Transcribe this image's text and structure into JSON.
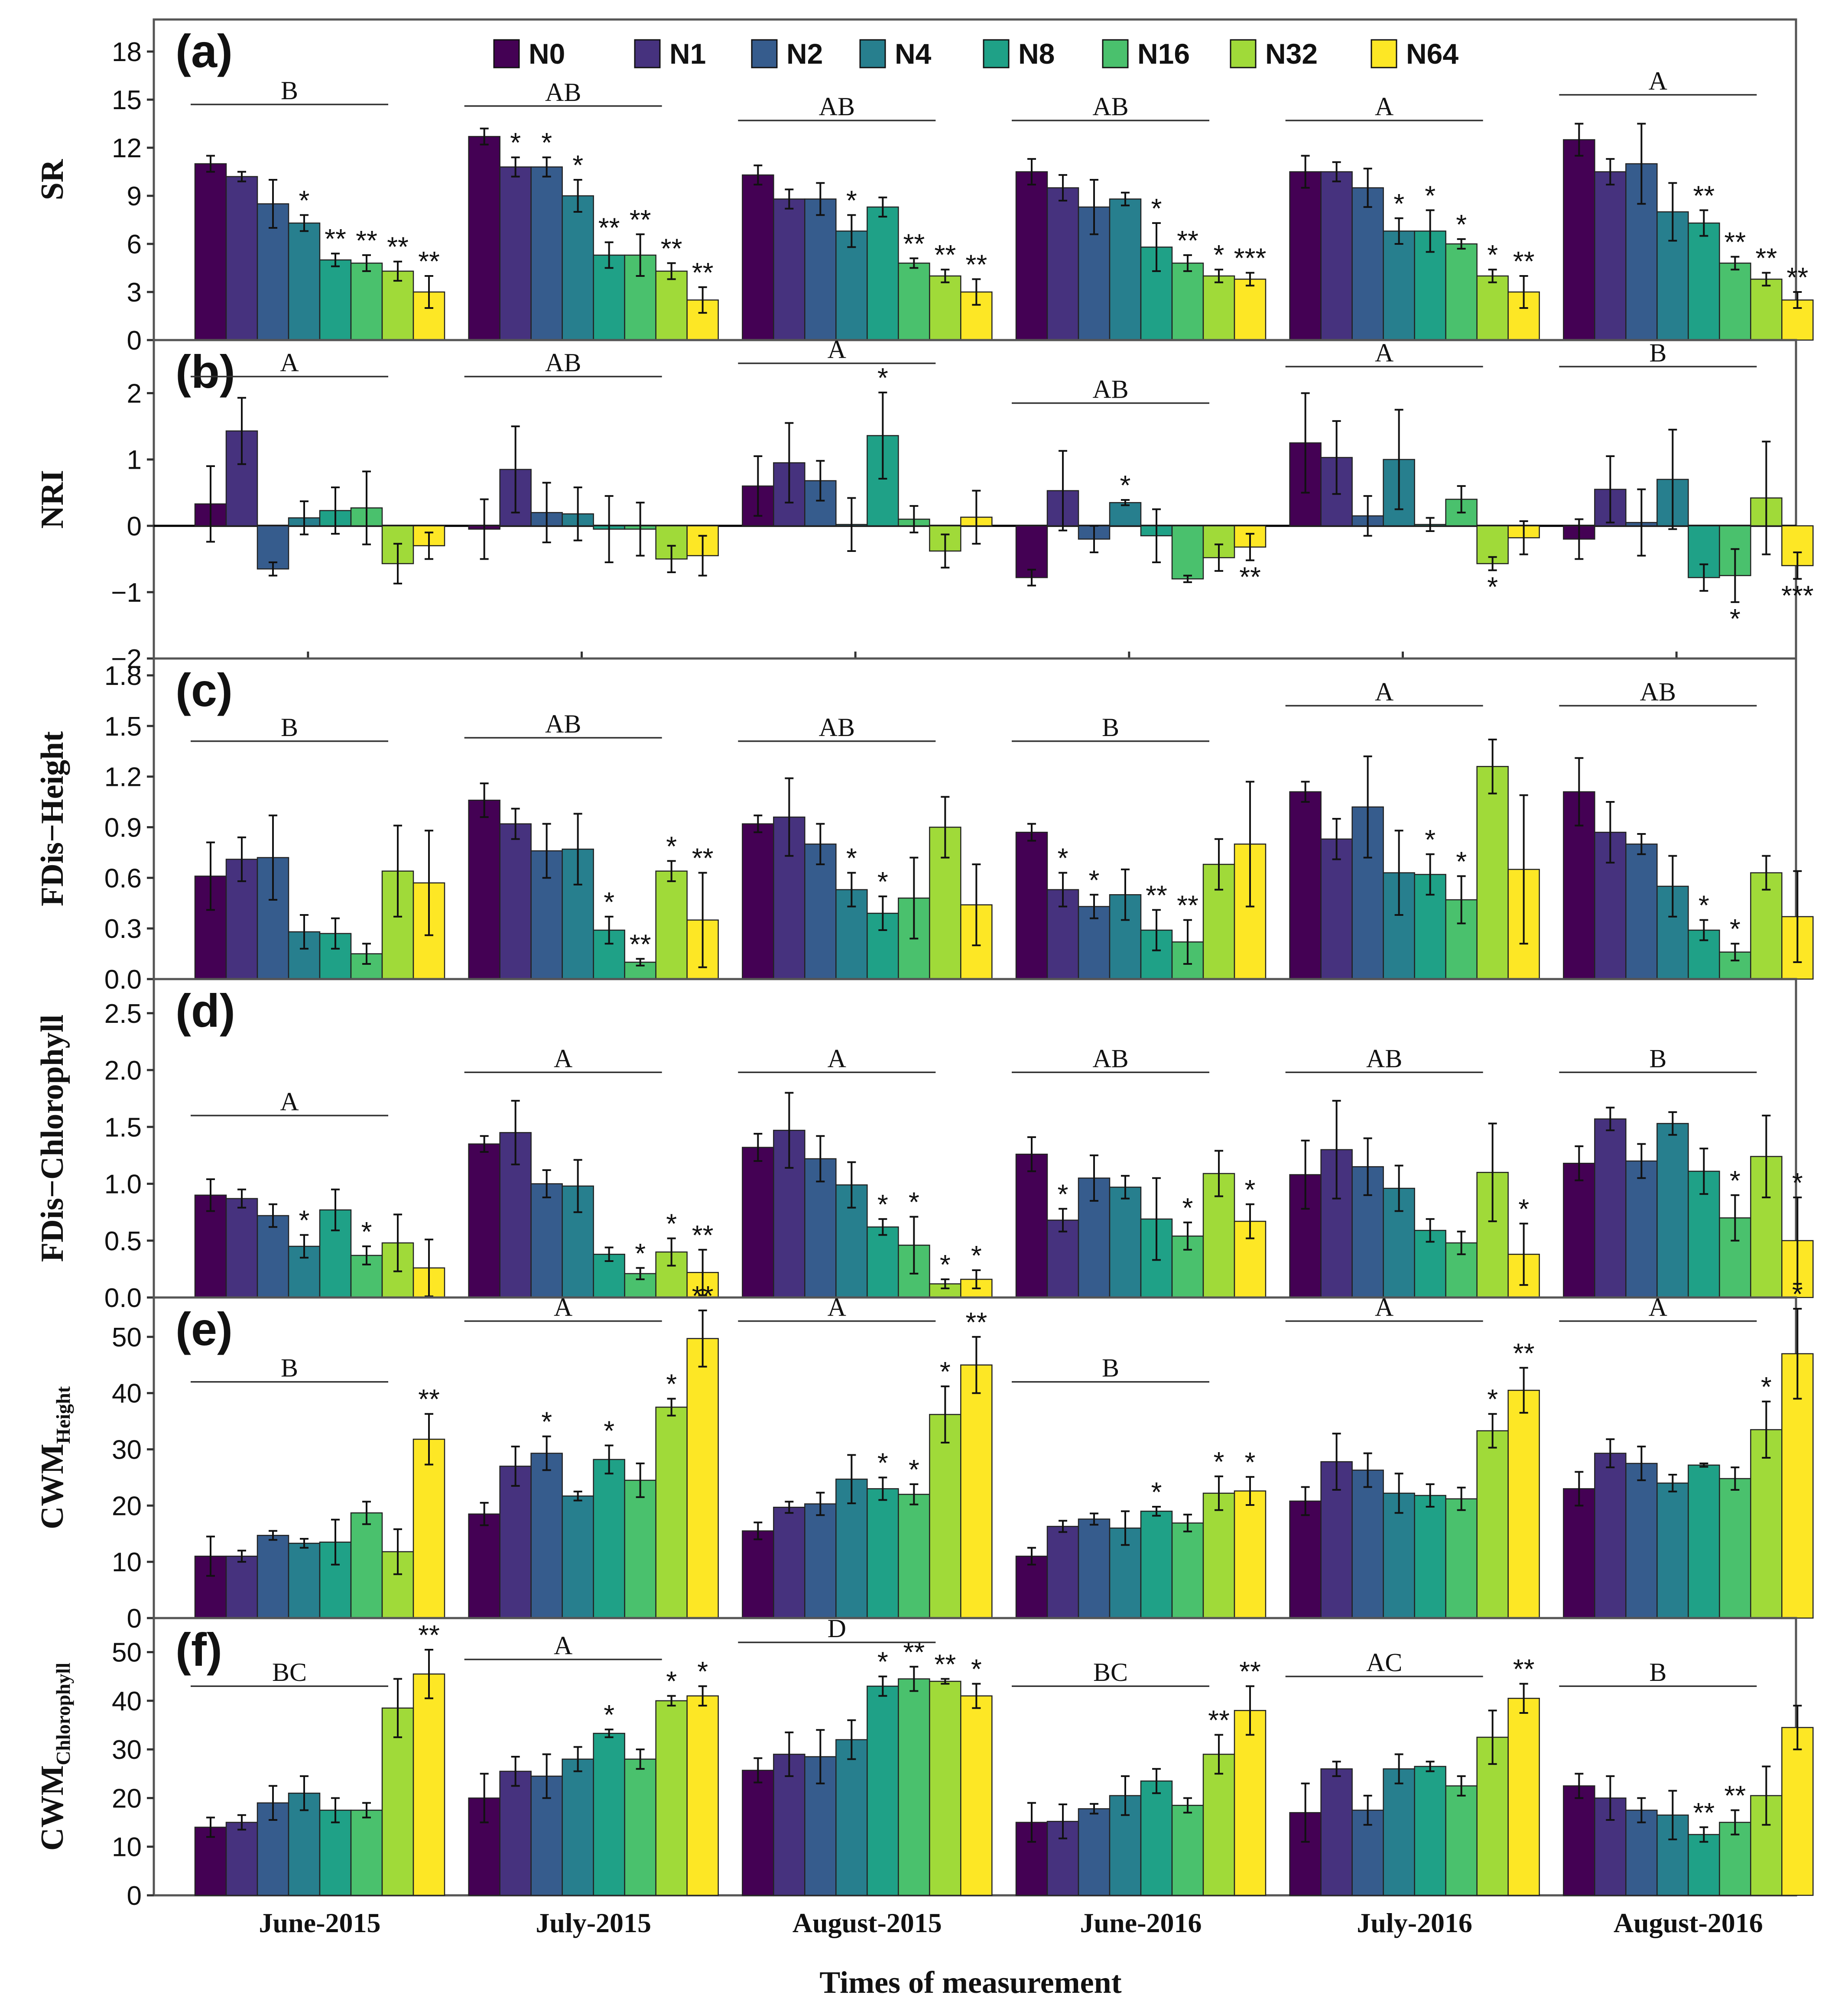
{
  "xlabel": "Times of measurement",
  "legend_entries": [
    "N0",
    "N1",
    "N2",
    "N4",
    "N8",
    "N16",
    "N32",
    "N64"
  ],
  "colors": [
    "#440154",
    "#46327e",
    "#365c8d",
    "#277f8e",
    "#1fa187",
    "#4ac16d",
    "#a0da39",
    "#fde725"
  ],
  "categories": [
    "June-2015",
    "July-2015",
    "August-2015",
    "June-2016",
    "July-2016",
    "August-2016"
  ],
  "chart_data": [
    {
      "type": "bar",
      "panel_label": "(a)",
      "ylabel_main": "SR",
      "ylabel_sub": "",
      "ylim": [
        0,
        20
      ],
      "yticks": [
        "0",
        "3",
        "6",
        "9",
        "12",
        "15",
        "18"
      ],
      "yticks_values": [
        0,
        3,
        6,
        9,
        12,
        15,
        18
      ],
      "series_values": [
        [
          11.0,
          10.2,
          8.5,
          7.3,
          5.0,
          4.8,
          4.3,
          3.0
        ],
        [
          12.7,
          10.8,
          10.8,
          9.0,
          5.3,
          5.3,
          4.3,
          2.5
        ],
        [
          10.3,
          8.8,
          8.8,
          6.8,
          8.3,
          4.8,
          4.0,
          3.0
        ],
        [
          10.5,
          9.5,
          8.3,
          8.8,
          5.8,
          4.8,
          4.0,
          3.8
        ],
        [
          10.5,
          10.5,
          9.5,
          6.8,
          6.8,
          6.0,
          4.0,
          3.0
        ],
        [
          12.5,
          10.5,
          11.0,
          8.0,
          7.3,
          4.8,
          3.8,
          2.5
        ]
      ],
      "errors": [
        [
          0.5,
          0.3,
          1.5,
          0.5,
          0.4,
          0.5,
          0.6,
          1.0
        ],
        [
          0.5,
          0.6,
          0.6,
          1.0,
          0.8,
          1.3,
          0.5,
          0.8
        ],
        [
          0.6,
          0.6,
          1.0,
          1.0,
          0.6,
          0.3,
          0.4,
          0.8
        ],
        [
          0.8,
          0.8,
          1.7,
          0.4,
          1.5,
          0.5,
          0.4,
          0.4
        ],
        [
          1.0,
          0.6,
          1.2,
          0.8,
          1.3,
          0.3,
          0.4,
          1.0
        ],
        [
          1.0,
          0.8,
          2.5,
          1.8,
          0.8,
          0.4,
          0.4,
          0.5
        ]
      ],
      "stars": [
        [
          "",
          "",
          "",
          "*",
          "**",
          "**",
          "**",
          "**"
        ],
        [
          "",
          "*",
          "*",
          "*",
          "**",
          "**",
          "**",
          "**"
        ],
        [
          "",
          "",
          "",
          "*",
          "",
          "**",
          "**",
          "**"
        ],
        [
          "",
          "",
          "",
          "",
          "*",
          "**",
          "*",
          "***"
        ],
        [
          "",
          "",
          "",
          "*",
          "*",
          "*",
          "*",
          "**"
        ],
        [
          "",
          "",
          "",
          "",
          "**",
          "**",
          "**",
          "**"
        ]
      ],
      "group_letters": [
        "B",
        "AB",
        "AB",
        "AB",
        "A",
        "A"
      ],
      "group_line_values": [
        14.7,
        14.6,
        13.7,
        13.7,
        13.7,
        15.3
      ]
    },
    {
      "type": "bar",
      "panel_label": "(b)",
      "ylabel_main": "NRI",
      "ylabel_sub": "",
      "ylim": [
        -2.0,
        2.8
      ],
      "yticks": [
        "−2",
        "−1",
        "0",
        "1",
        "2"
      ],
      "yticks_values": [
        -2,
        -1,
        0,
        1,
        2
      ],
      "series_values": [
        [
          0.33,
          1.43,
          -0.65,
          0.12,
          0.23,
          0.27,
          -0.57,
          -0.3
        ],
        [
          -0.05,
          0.85,
          0.2,
          0.18,
          -0.05,
          -0.05,
          -0.5,
          -0.45
        ],
        [
          0.6,
          0.95,
          0.68,
          0.02,
          1.36,
          0.1,
          -0.38,
          0.13
        ],
        [
          -0.78,
          0.53,
          -0.2,
          0.35,
          -0.15,
          -0.8,
          -0.48,
          -0.32
        ],
        [
          1.25,
          1.03,
          0.15,
          1.0,
          0.02,
          0.4,
          -0.57,
          -0.18
        ],
        [
          -0.2,
          0.55,
          0.05,
          0.7,
          -0.78,
          -0.75,
          0.42,
          -0.6
        ]
      ],
      "errors": [
        [
          0.57,
          0.5,
          0.1,
          0.25,
          0.35,
          0.55,
          0.3,
          0.2
        ],
        [
          0.45,
          0.65,
          0.45,
          0.4,
          0.5,
          0.4,
          0.2,
          0.3
        ],
        [
          0.45,
          0.6,
          0.3,
          0.4,
          0.65,
          0.2,
          0.25,
          0.4
        ],
        [
          0.12,
          0.6,
          0.2,
          0.04,
          0.4,
          0.05,
          0.2,
          0.2
        ],
        [
          0.75,
          0.55,
          0.3,
          0.75,
          0.1,
          0.2,
          0.1,
          0.25
        ],
        [
          0.3,
          0.5,
          0.5,
          0.75,
          0.2,
          0.4,
          0.85,
          0.2
        ]
      ],
      "stars": [
        [
          "",
          "",
          "",
          "",
          "",
          "",
          "",
          ""
        ],
        [
          "",
          "",
          "",
          "",
          "",
          "",
          "",
          ""
        ],
        [
          "",
          "",
          "",
          "",
          "*",
          "",
          "",
          ""
        ],
        [
          "",
          "",
          "",
          "*",
          "",
          "",
          "",
          "**"
        ],
        [
          "",
          "",
          "",
          "",
          "",
          "",
          "*",
          ""
        ],
        [
          "",
          "",
          "",
          "",
          "",
          "*",
          "",
          "***"
        ]
      ],
      "group_letters": [
        "A",
        "AB",
        "A",
        "AB",
        "A",
        "B"
      ],
      "group_line_values": [
        2.25,
        2.25,
        2.45,
        1.85,
        2.4,
        2.4
      ]
    },
    {
      "type": "bar",
      "panel_label": "(c)",
      "ylabel_main": "FDis−Height",
      "ylabel_sub": "",
      "ylim": [
        0,
        1.9
      ],
      "yticks": [
        "0.0",
        "0.3",
        "0.6",
        "0.9",
        "1.2",
        "1.5",
        "1.8"
      ],
      "yticks_values": [
        0,
        0.3,
        0.6,
        0.9,
        1.2,
        1.5,
        1.8
      ],
      "series_values": [
        [
          0.61,
          0.71,
          0.72,
          0.28,
          0.27,
          0.15,
          0.64,
          0.57
        ],
        [
          1.06,
          0.92,
          0.76,
          0.77,
          0.29,
          0.1,
          0.64,
          0.35
        ],
        [
          0.92,
          0.96,
          0.8,
          0.53,
          0.39,
          0.48,
          0.9,
          0.44
        ],
        [
          0.87,
          0.53,
          0.43,
          0.5,
          0.29,
          0.22,
          0.68,
          0.8
        ],
        [
          1.11,
          0.83,
          1.02,
          0.63,
          0.62,
          0.47,
          1.26,
          0.65
        ],
        [
          1.11,
          0.87,
          0.8,
          0.55,
          0.29,
          0.16,
          0.63,
          0.37
        ]
      ],
      "errors": [
        [
          0.2,
          0.13,
          0.25,
          0.1,
          0.09,
          0.06,
          0.27,
          0.31
        ],
        [
          0.1,
          0.09,
          0.16,
          0.21,
          0.08,
          0.02,
          0.06,
          0.28
        ],
        [
          0.05,
          0.23,
          0.12,
          0.1,
          0.1,
          0.24,
          0.18,
          0.24
        ],
        [
          0.05,
          0.1,
          0.07,
          0.15,
          0.12,
          0.13,
          0.15,
          0.37
        ],
        [
          0.06,
          0.12,
          0.3,
          0.25,
          0.12,
          0.14,
          0.16,
          0.44
        ],
        [
          0.2,
          0.18,
          0.06,
          0.18,
          0.06,
          0.05,
          0.1,
          0.27
        ]
      ],
      "stars": [
        [
          "",
          "",
          "",
          "",
          "",
          "",
          "",
          ""
        ],
        [
          "",
          "",
          "",
          "",
          "*",
          "**",
          "*",
          "**"
        ],
        [
          "",
          "",
          "",
          "*",
          "*",
          "",
          "",
          ""
        ],
        [
          "",
          "*",
          "*",
          "",
          "**",
          "**",
          "",
          ""
        ],
        [
          "",
          "",
          "",
          "",
          "*",
          "*",
          "",
          ""
        ],
        [
          "",
          "",
          "",
          "",
          "*",
          "*",
          "",
          ""
        ]
      ],
      "group_letters": [
        "B",
        "AB",
        "AB",
        "B",
        "A",
        "AB"
      ],
      "group_line_values": [
        1.41,
        1.43,
        1.41,
        1.41,
        1.62,
        1.62
      ]
    },
    {
      "type": "bar",
      "panel_label": "(d)",
      "ylabel_main": "FDis−Chlorophyll",
      "ylabel_sub": "",
      "ylim": [
        0,
        2.8
      ],
      "yticks": [
        "0.0",
        "0.5",
        "1.0",
        "1.5",
        "2.0",
        "2.5"
      ],
      "yticks_values": [
        0,
        0.5,
        1.0,
        1.5,
        2.0,
        2.5
      ],
      "series_values": [
        [
          0.9,
          0.87,
          0.72,
          0.45,
          0.77,
          0.37,
          0.48,
          0.26
        ],
        [
          1.35,
          1.45,
          1.0,
          0.98,
          0.38,
          0.21,
          0.4,
          0.22
        ],
        [
          1.32,
          1.47,
          1.22,
          0.99,
          0.62,
          0.46,
          0.12,
          0.16
        ],
        [
          1.26,
          0.68,
          1.05,
          0.97,
          0.69,
          0.54,
          1.09,
          0.67
        ],
        [
          1.08,
          1.3,
          1.15,
          0.96,
          0.59,
          0.48,
          1.1,
          0.38
        ],
        [
          1.18,
          1.57,
          1.2,
          1.53,
          1.11,
          0.7,
          1.24,
          0.5
        ]
      ],
      "errors": [
        [
          0.14,
          0.08,
          0.1,
          0.1,
          0.18,
          0.08,
          0.25,
          0.25
        ],
        [
          0.07,
          0.28,
          0.12,
          0.23,
          0.06,
          0.05,
          0.12,
          0.2
        ],
        [
          0.12,
          0.33,
          0.2,
          0.2,
          0.07,
          0.25,
          0.04,
          0.08
        ],
        [
          0.15,
          0.1,
          0.2,
          0.1,
          0.36,
          0.12,
          0.2,
          0.15
        ],
        [
          0.3,
          0.43,
          0.25,
          0.2,
          0.1,
          0.1,
          0.43,
          0.27
        ],
        [
          0.15,
          0.1,
          0.15,
          0.1,
          0.2,
          0.2,
          0.36,
          0.38
        ]
      ],
      "stars": [
        [
          "",
          "",
          "",
          "*",
          "",
          "*",
          "",
          ""
        ],
        [
          "",
          "",
          "",
          "",
          "",
          "*",
          "*",
          "**"
        ],
        [
          "",
          "",
          "",
          "",
          "*",
          "*",
          "*",
          "*"
        ],
        [
          "",
          "*",
          "",
          "",
          "",
          "*",
          "",
          "*"
        ],
        [
          "",
          "",
          "",
          "",
          "",
          "",
          "",
          "*"
        ],
        [
          "",
          "",
          "",
          "",
          "",
          "*",
          "",
          "*"
        ]
      ],
      "group_letters": [
        "A",
        "A",
        "A",
        "AB",
        "AB",
        "B"
      ],
      "group_line_values": [
        1.6,
        1.98,
        1.98,
        1.98,
        1.98,
        1.98
      ]
    },
    {
      "type": "bar",
      "panel_label": "(e)",
      "ylabel_main": "CWM",
      "ylabel_sub": "Height",
      "ylim": [
        0,
        57
      ],
      "yticks": [
        "0",
        "10",
        "20",
        "30",
        "40",
        "50"
      ],
      "yticks_values": [
        0,
        10,
        20,
        30,
        40,
        50
      ],
      "series_values": [
        [
          11.0,
          11.0,
          14.7,
          13.3,
          13.5,
          18.7,
          11.8,
          31.8
        ],
        [
          18.5,
          27.0,
          29.3,
          21.7,
          28.2,
          24.5,
          37.5,
          49.7
        ],
        [
          15.5,
          19.7,
          20.3,
          24.7,
          23.0,
          22.0,
          36.2,
          45.0
        ],
        [
          11.0,
          16.3,
          17.6,
          16.0,
          19.0,
          16.9,
          22.2,
          22.6
        ],
        [
          20.8,
          27.8,
          26.3,
          22.2,
          21.8,
          21.2,
          33.3,
          40.5
        ],
        [
          23.0,
          29.3,
          27.5,
          24.0,
          27.2,
          24.8,
          33.5,
          47.0
        ]
      ],
      "errors": [
        [
          3.5,
          1.0,
          0.8,
          0.8,
          4.0,
          2.0,
          4.0,
          4.5
        ],
        [
          2.0,
          3.5,
          3.0,
          0.8,
          2.5,
          3.0,
          1.5,
          5.0
        ],
        [
          1.5,
          1.0,
          2.0,
          4.3,
          2.0,
          1.8,
          5.0,
          5.0
        ],
        [
          1.5,
          1.0,
          1.0,
          3.0,
          0.8,
          1.5,
          3.0,
          2.5
        ],
        [
          2.5,
          5.0,
          3.0,
          3.5,
          2.0,
          2.0,
          3.0,
          4.0
        ],
        [
          3.0,
          2.5,
          3.0,
          1.5,
          0.3,
          2.0,
          5.0,
          8.0
        ]
      ],
      "stars": [
        [
          "",
          "",
          "",
          "",
          "",
          "",
          "",
          "**"
        ],
        [
          "",
          "",
          "*",
          "",
          "*",
          "",
          "*",
          "**"
        ],
        [
          "",
          "",
          "",
          "",
          "*",
          "*",
          "*",
          "**"
        ],
        [
          "",
          "",
          "",
          "",
          "*",
          "",
          "*",
          "*"
        ],
        [
          "",
          "",
          "",
          "",
          "",
          "",
          "*",
          "**"
        ],
        [
          "",
          "",
          "",
          "",
          "",
          "",
          "*",
          "*"
        ]
      ],
      "group_letters": [
        "B",
        "A",
        "A",
        "B",
        "A",
        "A"
      ],
      "group_line_values": [
        42.0,
        52.8,
        52.8,
        42.0,
        52.8,
        52.8
      ]
    },
    {
      "type": "bar",
      "panel_label": "(f)",
      "ylabel_main": "CWM",
      "ylabel_sub": "Chlorophyll",
      "ylim": [
        0,
        57
      ],
      "yticks": [
        "0",
        "10",
        "20",
        "30",
        "40",
        "50"
      ],
      "yticks_values": [
        0,
        10,
        20,
        30,
        40,
        50
      ],
      "series_values": [
        [
          14.0,
          15.0,
          19.0,
          21.0,
          17.5,
          17.5,
          38.5,
          45.5
        ],
        [
          20.0,
          25.5,
          24.5,
          28.0,
          33.3,
          28.0,
          40.0,
          41.0
        ],
        [
          25.7,
          29.0,
          28.5,
          32.0,
          43.0,
          44.5,
          44.0,
          41.0
        ],
        [
          15.0,
          15.2,
          17.8,
          20.5,
          23.5,
          18.5,
          29.0,
          38.0
        ],
        [
          17.0,
          26.0,
          17.5,
          26.0,
          26.5,
          22.5,
          32.5,
          40.5
        ],
        [
          22.5,
          20.0,
          17.5,
          16.5,
          12.5,
          15.0,
          20.5,
          34.5
        ]
      ],
      "errors": [
        [
          2.0,
          1.5,
          3.5,
          3.5,
          2.5,
          1.5,
          6.0,
          5.0
        ],
        [
          5.0,
          3.0,
          4.5,
          2.5,
          0.8,
          2.0,
          1.0,
          2.0
        ],
        [
          2.5,
          4.5,
          5.5,
          4.0,
          2.0,
          2.5,
          0.5,
          2.5
        ],
        [
          4.0,
          3.5,
          1.0,
          4.0,
          2.5,
          1.5,
          4.0,
          5.0
        ],
        [
          6.0,
          1.5,
          3.0,
          3.0,
          1.0,
          2.0,
          5.5,
          3.0
        ],
        [
          2.5,
          4.5,
          2.5,
          5.0,
          1.5,
          2.5,
          6.0,
          4.5
        ]
      ],
      "stars": [
        [
          "",
          "",
          "",
          "",
          "",
          "",
          "",
          "**"
        ],
        [
          "",
          "",
          "",
          "",
          "*",
          "",
          "*",
          "*"
        ],
        [
          "",
          "",
          "",
          "",
          "*",
          "**",
          "**",
          "*"
        ],
        [
          "",
          "",
          "",
          "",
          "",
          "",
          "**",
          "**"
        ],
        [
          "",
          "",
          "",
          "",
          "",
          "",
          "",
          "**"
        ],
        [
          "",
          "",
          "",
          "",
          "**",
          "**",
          "",
          ""
        ]
      ],
      "group_letters": [
        "BC",
        "A",
        "D",
        "BC",
        "AC",
        "B"
      ],
      "group_line_values": [
        43.0,
        48.5,
        52.0,
        43.0,
        45.0,
        43.0
      ]
    }
  ]
}
